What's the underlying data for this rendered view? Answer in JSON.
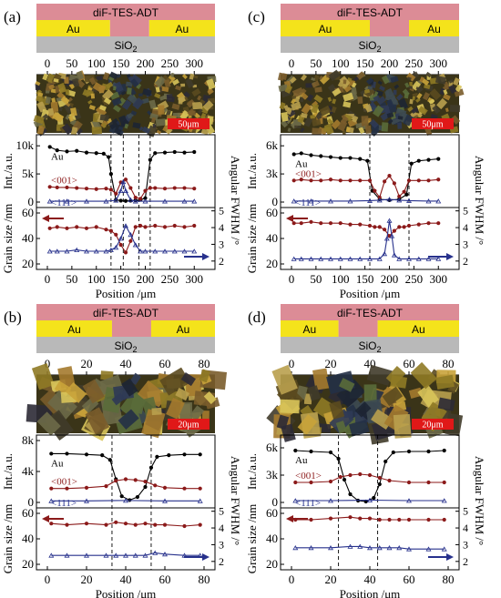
{
  "colors": {
    "dif": "#dc8c96",
    "au": "#f4e31b",
    "sio2": "#b9b9b9",
    "scale_bar": "#e01818",
    "au_series": "#000000",
    "s001": "#8b1a1a",
    "s111": "#27318c"
  },
  "common": {
    "dif_label": "diF-TES-ADT",
    "au_label": "Au",
    "sio2_label": "SiO",
    "sio2_sub": "2",
    "int_ylabel": "Int./a.u.",
    "grain_ylabel": "Grain size /nm",
    "fwhm_ylabel": "Angular FWHM /°",
    "xlabel": "Position /μm",
    "au_series_label": "Au",
    "s001_label": "<001>",
    "s111_label": "<111>"
  },
  "panels": [
    {
      "letter": "(a)",
      "xmax": 320,
      "x_ticks": [
        0,
        50,
        100,
        150,
        200,
        250,
        300
      ],
      "gap": [
        128,
        208
      ],
      "dashed_x": [
        130,
        155,
        187,
        210
      ],
      "scale_bar": "50μm",
      "int_ticks": [
        "0",
        "5k",
        "10k"
      ],
      "int_vals": [
        0,
        5000,
        10000
      ],
      "int_max": 11000,
      "grain_ticks": [
        20,
        40,
        60
      ],
      "grain_range": [
        20,
        60
      ],
      "fwhm_ticks": [
        2,
        3,
        4,
        5
      ],
      "fwhm_range": [
        1.5,
        5.2
      ]
    },
    {
      "letter": "(c)",
      "xmax": 320,
      "x_ticks": [
        0,
        50,
        100,
        150,
        200,
        250,
        300
      ],
      "gap": [
        160,
        240
      ],
      "dashed_x": [
        160,
        240
      ],
      "scale_bar": "50μm",
      "int_ticks": [
        "0",
        "3k",
        "6k"
      ],
      "int_vals": [
        0,
        3000,
        6000
      ],
      "int_max": 6600,
      "grain_ticks": [
        20,
        40,
        60
      ],
      "grain_range": [
        20,
        60
      ],
      "fwhm_ticks": [
        2,
        3,
        4,
        5
      ],
      "fwhm_range": [
        1.5,
        5.2
      ]
    },
    {
      "letter": "(b)",
      "xmax": 80,
      "x_ticks": [
        0,
        20,
        40,
        60,
        80
      ],
      "gap": [
        33,
        53
      ],
      "dashed_x": [
        33,
        53
      ],
      "scale_bar": "20μm",
      "int_ticks": [
        "0",
        "4k",
        "8k"
      ],
      "int_vals": [
        0,
        4000,
        8000
      ],
      "int_max": 8000,
      "grain_ticks": [
        20,
        40,
        60
      ],
      "grain_range": [
        20,
        60
      ],
      "fwhm_ticks": [
        2,
        3,
        4,
        5
      ],
      "fwhm_range": [
        1.5,
        5.2
      ]
    },
    {
      "letter": "(d)",
      "xmax": 80,
      "x_ticks": [
        0,
        20,
        40,
        60,
        80
      ],
      "gap": [
        24,
        44
      ],
      "dashed_x": [
        24,
        44
      ],
      "scale_bar": "20μm",
      "int_ticks": [
        "0",
        "3k",
        "6k"
      ],
      "int_vals": [
        0,
        3000,
        6000
      ],
      "int_max": 6800,
      "grain_ticks": [
        20,
        40,
        60
      ],
      "grain_range": [
        20,
        60
      ],
      "fwhm_ticks": [
        2,
        3,
        4,
        5
      ],
      "fwhm_range": [
        1.5,
        5.2
      ]
    }
  ],
  "chart_data": [
    {
      "type": "line",
      "panel": "(a) intensity",
      "xlabel": "Position /μm",
      "ylabel": "Int./a.u.",
      "xlim": [
        0,
        320
      ],
      "ylim": [
        0,
        11000
      ],
      "series": [
        {
          "name": "Au",
          "x": [
            5,
            20,
            40,
            60,
            80,
            100,
            115,
            125,
            130,
            140,
            150,
            160,
            170,
            180,
            190,
            200,
            210,
            220,
            240,
            260,
            280,
            300
          ],
          "y": [
            9800,
            9200,
            9000,
            9100,
            8800,
            8700,
            8600,
            8000,
            5000,
            400,
            250,
            200,
            250,
            300,
            400,
            700,
            7500,
            8700,
            8800,
            8900,
            8800,
            8900
          ]
        },
        {
          "name": "<001>",
          "x": [
            5,
            20,
            40,
            60,
            80,
            100,
            120,
            130,
            140,
            150,
            160,
            170,
            180,
            190,
            200,
            210,
            220,
            240,
            260,
            280,
            300
          ],
          "y": [
            2700,
            2600,
            2600,
            2500,
            2400,
            2300,
            2400,
            2200,
            1500,
            3500,
            4000,
            2500,
            800,
            600,
            2000,
            2500,
            2500,
            2400,
            2500,
            2500,
            2400
          ]
        },
        {
          "name": "<111>",
          "x": [
            5,
            40,
            80,
            120,
            140,
            150,
            155,
            160,
            170,
            180,
            200,
            240,
            280,
            300
          ],
          "y": [
            150,
            150,
            150,
            150,
            300,
            2000,
            3600,
            2000,
            400,
            150,
            150,
            150,
            150,
            150
          ]
        }
      ]
    },
    {
      "type": "line",
      "panel": "(a) grain size / FWHM",
      "xlabel": "Position /μm",
      "ylabel": "Grain size /nm",
      "xlim": [
        0,
        320
      ],
      "ylim": [
        20,
        60
      ],
      "series": [
        {
          "name": "<001>",
          "x": [
            5,
            20,
            40,
            60,
            80,
            100,
            120,
            130,
            140,
            150,
            160,
            170,
            180,
            190,
            200,
            220,
            240,
            260,
            280,
            300
          ],
          "y": [
            48,
            49,
            48,
            49,
            48,
            49,
            47,
            46,
            43,
            35,
            29,
            38,
            49,
            50,
            49,
            50,
            49,
            50,
            49,
            50
          ]
        },
        {
          "name": "<111>",
          "x": [
            5,
            20,
            40,
            60,
            80,
            100,
            120,
            130,
            140,
            150,
            160,
            170,
            180,
            190,
            200,
            220,
            240,
            260,
            280,
            300
          ],
          "y": [
            30,
            30,
            30,
            31,
            30,
            30,
            30,
            31,
            33,
            40,
            50,
            43,
            35,
            30,
            30,
            30,
            30,
            30,
            30,
            30
          ]
        }
      ]
    },
    {
      "type": "line",
      "panel": "(c) intensity",
      "xlabel": "Position /μm",
      "ylabel": "Int./a.u.",
      "xlim": [
        0,
        320
      ],
      "ylim": [
        0,
        6600
      ],
      "series": [
        {
          "name": "Au",
          "x": [
            5,
            20,
            40,
            60,
            80,
            100,
            120,
            140,
            155,
            165,
            180,
            200,
            220,
            235,
            245,
            260,
            280,
            300
          ],
          "y": [
            5100,
            5200,
            5000,
            4900,
            4800,
            4700,
            4700,
            4600,
            4400,
            1200,
            300,
            200,
            300,
            800,
            4100,
            4400,
            4500,
            4600
          ]
        },
        {
          "name": "<001>",
          "x": [
            5,
            20,
            40,
            60,
            80,
            100,
            120,
            140,
            160,
            170,
            180,
            190,
            200,
            210,
            220,
            230,
            240,
            260,
            280,
            300
          ],
          "y": [
            2300,
            2400,
            2300,
            2300,
            2400,
            2300,
            2300,
            2300,
            2300,
            1200,
            500,
            2200,
            2800,
            2000,
            600,
            1100,
            2300,
            2300,
            2300,
            2400
          ]
        },
        {
          "name": "<111>",
          "x": [
            5,
            40,
            80,
            120,
            160,
            180,
            200,
            220,
            240,
            280,
            300
          ],
          "y": [
            100,
            100,
            100,
            100,
            150,
            200,
            300,
            200,
            150,
            100,
            100
          ]
        }
      ]
    },
    {
      "type": "line",
      "panel": "(c) grain size / FWHM",
      "xlabel": "Position /μm",
      "ylabel": "Grain size /nm",
      "xlim": [
        0,
        320
      ],
      "ylim": [
        20,
        60
      ],
      "series": [
        {
          "name": "<001>",
          "x": [
            5,
            20,
            40,
            60,
            80,
            100,
            120,
            140,
            160,
            170,
            180,
            190,
            200,
            210,
            220,
            230,
            240,
            260,
            280,
            300
          ],
          "y": [
            52,
            52,
            53,
            52,
            52,
            52,
            51,
            51,
            50,
            49,
            49,
            47,
            42,
            46,
            49,
            49,
            50,
            51,
            52,
            52
          ]
        },
        {
          "name": "<111>",
          "x": [
            5,
            20,
            40,
            60,
            80,
            100,
            120,
            140,
            160,
            180,
            190,
            195,
            200,
            205,
            210,
            220,
            240,
            260,
            280,
            300
          ],
          "y": [
            24,
            24,
            24,
            24,
            24,
            24,
            24,
            24,
            24,
            24,
            28,
            40,
            54,
            42,
            27,
            24,
            24,
            24,
            24,
            24
          ]
        }
      ]
    },
    {
      "type": "line",
      "panel": "(b) intensity",
      "xlabel": "Position /μm",
      "ylabel": "Int./a.u.",
      "xlim": [
        0,
        80
      ],
      "ylim": [
        0,
        8000
      ],
      "series": [
        {
          "name": "Au",
          "x": [
            2,
            10,
            20,
            28,
            32,
            35,
            38,
            42,
            46,
            50,
            53,
            56,
            62,
            70,
            78
          ],
          "y": [
            6300,
            6300,
            6200,
            6100,
            5500,
            3000,
            800,
            300,
            700,
            2000,
            4500,
            5900,
            6100,
            6200,
            6200
          ]
        },
        {
          "name": "<001>",
          "x": [
            2,
            10,
            20,
            30,
            35,
            40,
            45,
            50,
            55,
            60,
            70,
            78
          ],
          "y": [
            1800,
            1800,
            1900,
            2100,
            2800,
            3000,
            2900,
            2700,
            2200,
            1900,
            1800,
            1800
          ]
        },
        {
          "name": "<111>",
          "x": [
            2,
            20,
            40,
            60,
            78
          ],
          "y": [
            200,
            200,
            250,
            200,
            200
          ]
        }
      ]
    },
    {
      "type": "line",
      "panel": "(b) grain size / FWHM",
      "xlabel": "Position /μm",
      "ylabel": "Grain size /nm",
      "xlim": [
        0,
        80
      ],
      "ylim": [
        20,
        60
      ],
      "series": [
        {
          "name": "<001>",
          "x": [
            2,
            10,
            20,
            30,
            35,
            40,
            45,
            50,
            55,
            60,
            70,
            78
          ],
          "y": [
            52,
            51,
            52,
            51,
            53,
            52,
            51,
            52,
            51,
            51,
            50,
            51
          ]
        },
        {
          "name": "<111>",
          "x": [
            2,
            10,
            20,
            30,
            35,
            40,
            45,
            50,
            55,
            60,
            70,
            78
          ],
          "y": [
            27,
            27,
            27,
            27,
            27,
            27,
            27,
            27,
            29,
            28,
            27,
            27
          ]
        }
      ]
    },
    {
      "type": "line",
      "panel": "(d) intensity",
      "xlabel": "Position /μm",
      "ylabel": "Int./a.u.",
      "xlim": [
        0,
        80
      ],
      "ylim": [
        0,
        6800
      ],
      "series": [
        {
          "name": "Au",
          "x": [
            2,
            10,
            20,
            24,
            27,
            30,
            34,
            38,
            42,
            45,
            48,
            52,
            60,
            70,
            78
          ],
          "y": [
            5700,
            5600,
            5500,
            4800,
            2500,
            900,
            200,
            100,
            500,
            2000,
            4500,
            5500,
            5600,
            5600,
            5700
          ]
        },
        {
          "name": "<001>",
          "x": [
            2,
            10,
            20,
            25,
            30,
            35,
            40,
            45,
            50,
            60,
            70,
            78
          ],
          "y": [
            2200,
            2200,
            2300,
            2800,
            3000,
            3100,
            3000,
            2700,
            2400,
            2200,
            2200,
            2200
          ]
        },
        {
          "name": "<111>",
          "x": [
            2,
            20,
            40,
            60,
            78
          ],
          "y": [
            200,
            200,
            250,
            200,
            200
          ]
        }
      ]
    },
    {
      "type": "line",
      "panel": "(d) grain size / FWHM",
      "xlabel": "Position /μm",
      "ylabel": "Grain size /nm",
      "xlim": [
        0,
        80
      ],
      "ylim": [
        20,
        60
      ],
      "series": [
        {
          "name": "<001>",
          "x": [
            2,
            10,
            20,
            30,
            35,
            40,
            45,
            50,
            55,
            60,
            70,
            78
          ],
          "y": [
            55,
            55,
            56,
            57,
            56,
            56,
            55,
            55,
            55,
            55,
            55,
            55
          ]
        },
        {
          "name": "<111>",
          "x": [
            2,
            10,
            20,
            30,
            35,
            40,
            45,
            50,
            55,
            60,
            70,
            78
          ],
          "y": [
            33,
            33,
            33,
            34,
            34,
            33,
            33,
            33,
            33,
            32,
            32,
            32
          ]
        }
      ]
    }
  ]
}
